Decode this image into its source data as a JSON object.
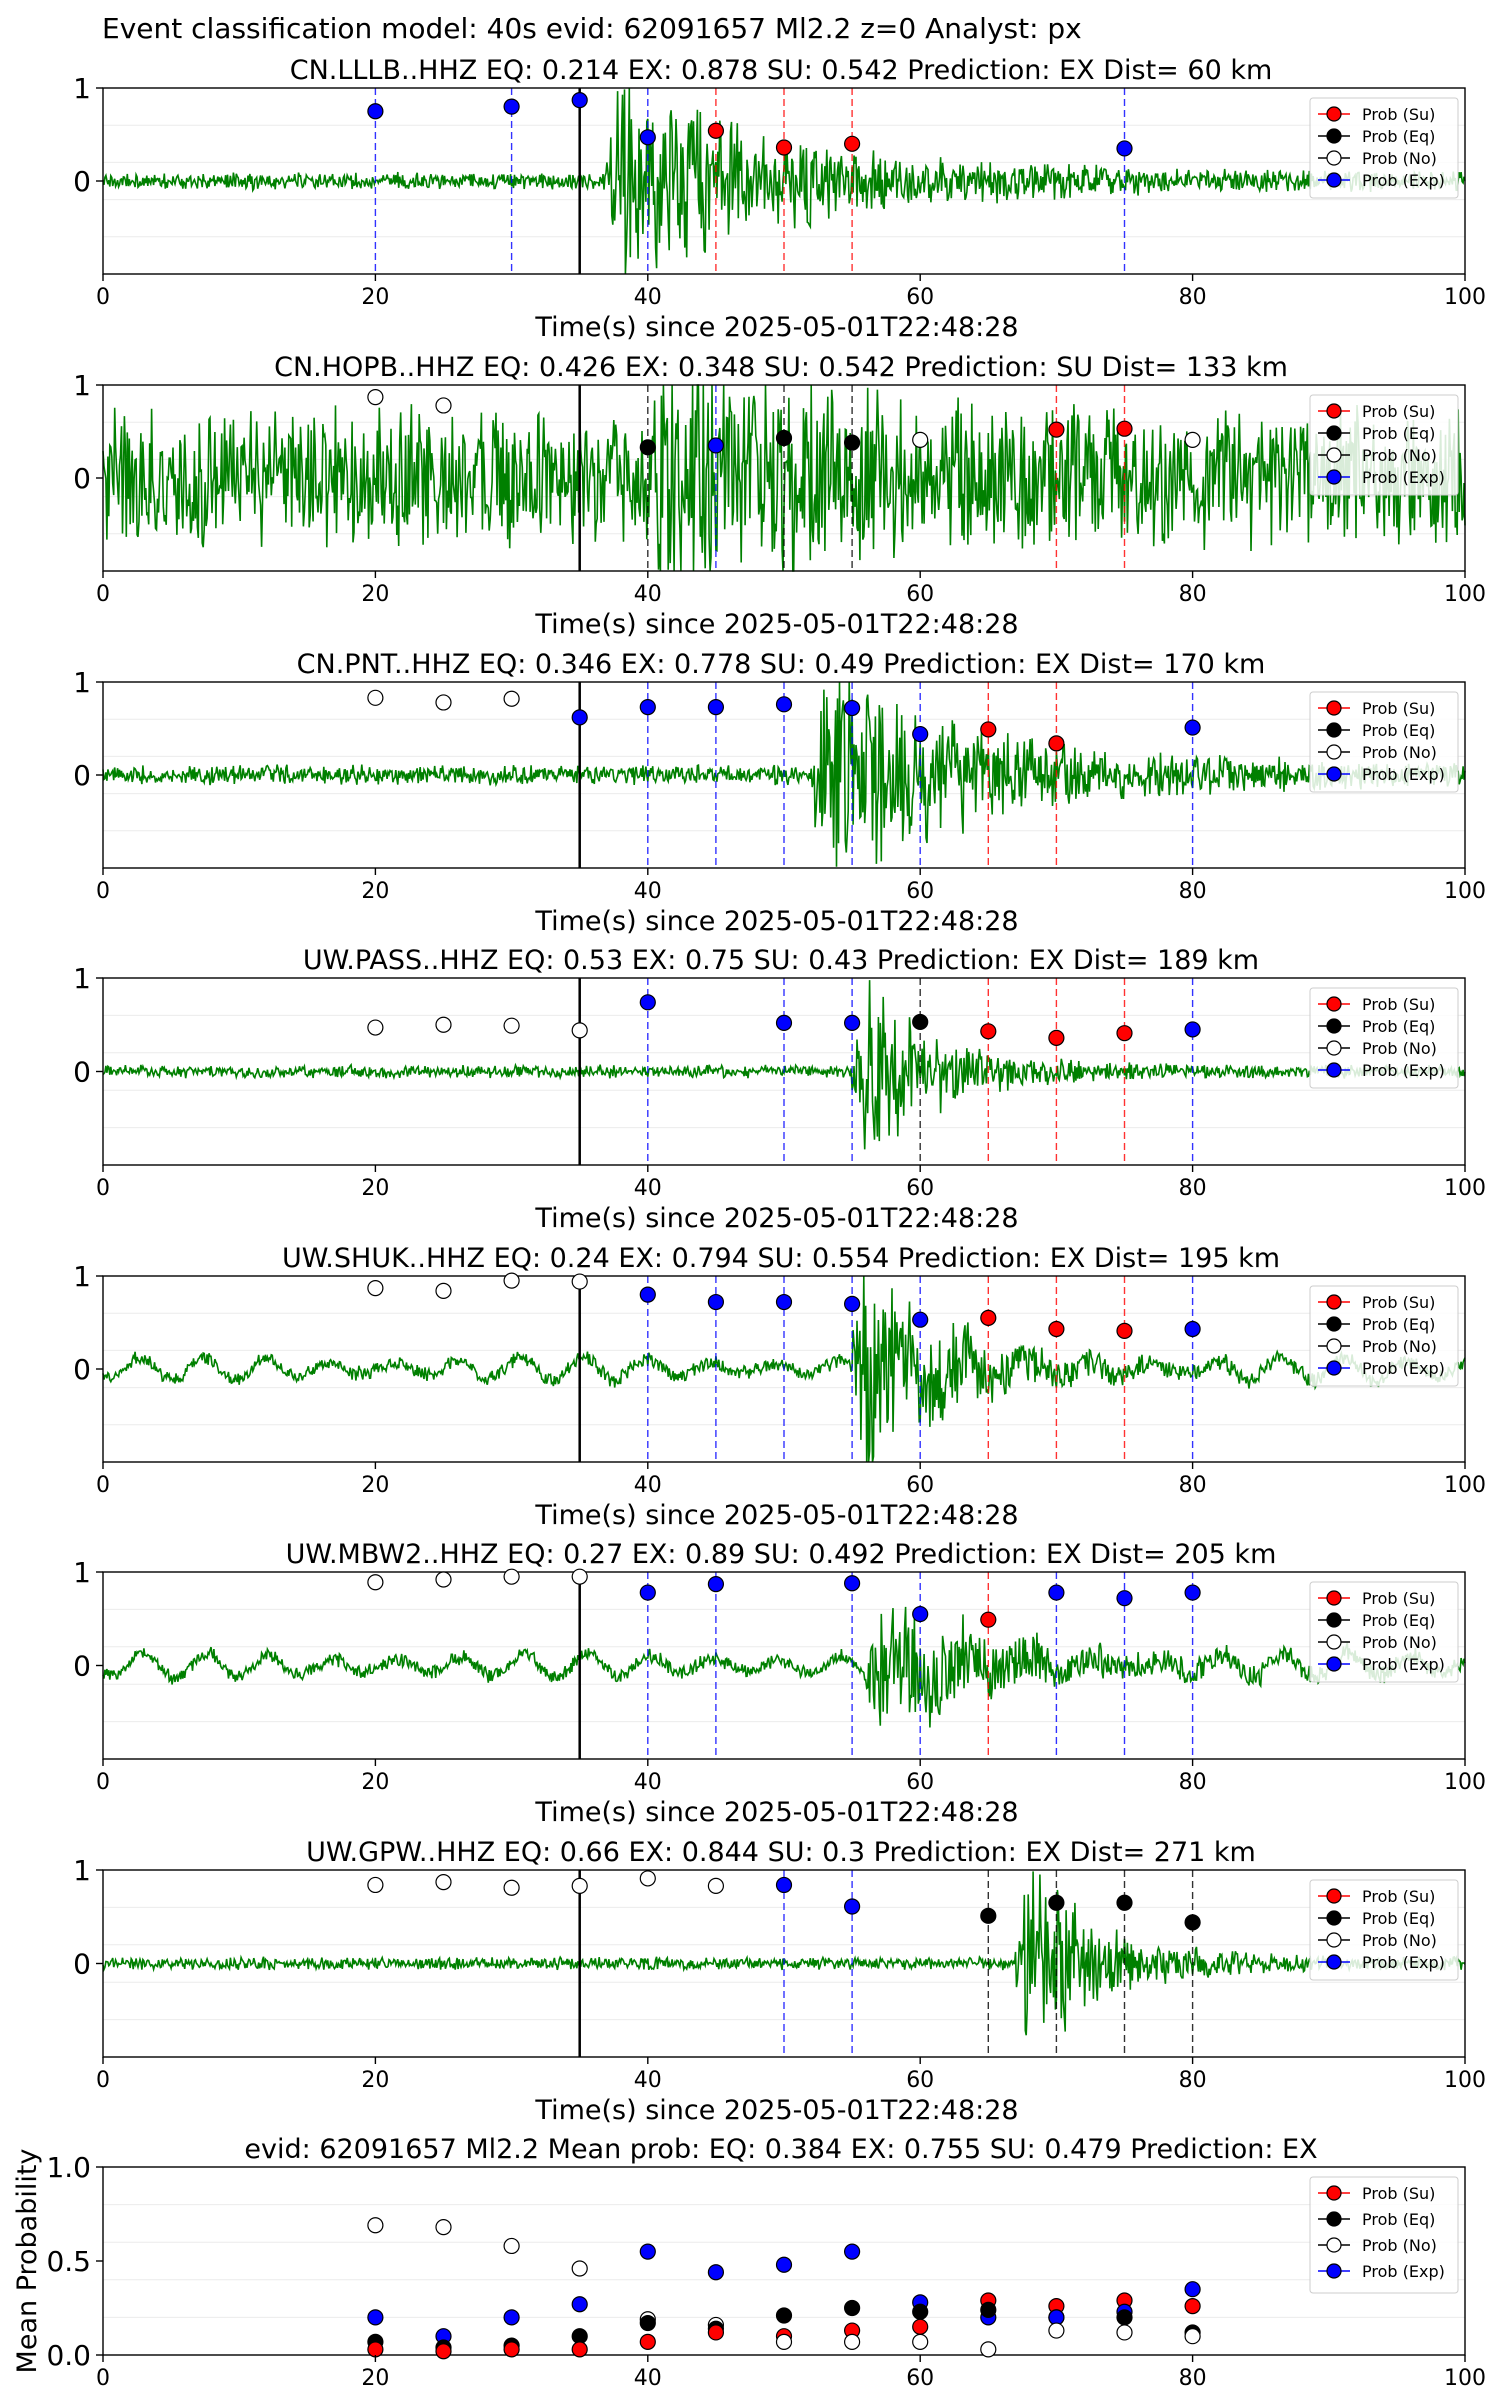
{
  "figure_title": "Event classification model: 40s evid: 62091657 Ml2.2 z=0 Analyst: px",
  "legend": [
    {
      "label": "Prob (Su)",
      "color": "#ff0000",
      "fill": true
    },
    {
      "label": "Prob (Eq)",
      "color": "#000000",
      "fill": true
    },
    {
      "label": "Prob (No)",
      "color": "#ffffff",
      "fill": false
    },
    {
      "label": "Prob (Exp)",
      "color": "#0000ff",
      "fill": true
    }
  ],
  "colors": {
    "waveform": "#008000",
    "su": "#ff0000",
    "eq": "#000000",
    "no": "#ffffff",
    "exp": "#0000ff",
    "pick": "#000000"
  },
  "chart_data": [
    {
      "type": "scatter",
      "title": "CN.LLLB..HHZ   EQ: 0.214  EX: 0.878  SU: 0.542   Prediction: EX    Dist= 60 km",
      "xlabel": "Time(s) since 2025-05-01T22:48:28",
      "xlim": [
        0,
        100
      ],
      "ylim": [
        -1,
        1
      ],
      "yticks": [
        "1",
        "0"
      ],
      "xticks": [
        "0",
        "20",
        "40",
        "60",
        "80",
        "100"
      ],
      "pick": 35,
      "amp": 0.8,
      "quiet": 0.07,
      "onset": 37,
      "decay": 30,
      "seed": 3,
      "lf": 0.0,
      "points": [
        {
          "x": 20,
          "y": 0.75,
          "class": "exp"
        },
        {
          "x": 30,
          "y": 0.8,
          "class": "exp"
        },
        {
          "x": 35,
          "y": 0.87,
          "class": "exp"
        },
        {
          "x": 40,
          "y": 0.47,
          "class": "exp"
        },
        {
          "x": 45,
          "y": 0.54,
          "class": "su"
        },
        {
          "x": 50,
          "y": 0.36,
          "class": "su"
        },
        {
          "x": 55,
          "y": 0.4,
          "class": "su"
        },
        {
          "x": 75,
          "y": 0.35,
          "class": "exp"
        }
      ]
    },
    {
      "type": "scatter",
      "title": "CN.HOPB..HHZ   EQ: 0.426  EX: 0.348  SU: 0.542   Prediction: SU    Dist= 133 km",
      "xlabel": "Time(s) since 2025-05-01T22:48:28",
      "xlim": [
        0,
        100
      ],
      "ylim": [
        -1,
        1
      ],
      "yticks": [
        "1",
        "0"
      ],
      "xticks": [
        "0",
        "20",
        "40",
        "60",
        "80",
        "100"
      ],
      "pick": 35,
      "amp": 0.7,
      "quiet": 0.55,
      "onset": 40,
      "decay": 25,
      "seed": 7,
      "lf": 0.0,
      "points": [
        {
          "x": 20,
          "y": 0.87,
          "class": "no"
        },
        {
          "x": 25,
          "y": 0.78,
          "class": "no"
        },
        {
          "x": 40,
          "y": 0.33,
          "class": "eq"
        },
        {
          "x": 45,
          "y": 0.35,
          "class": "exp"
        },
        {
          "x": 50,
          "y": 0.43,
          "class": "eq"
        },
        {
          "x": 55,
          "y": 0.38,
          "class": "eq"
        },
        {
          "x": 60,
          "y": 0.41,
          "class": "no"
        },
        {
          "x": 70,
          "y": 0.52,
          "class": "su"
        },
        {
          "x": 75,
          "y": 0.53,
          "class": "su"
        },
        {
          "x": 80,
          "y": 0.41,
          "class": "no"
        }
      ]
    },
    {
      "type": "scatter",
      "title": "CN.PNT..HHZ   EQ: 0.346  EX: 0.778  SU: 0.49   Prediction: EX    Dist= 170 km",
      "xlabel": "Time(s) since 2025-05-01T22:48:28",
      "xlim": [
        0,
        100
      ],
      "ylim": [
        -1,
        1
      ],
      "yticks": [
        "1",
        "0"
      ],
      "xticks": [
        "0",
        "20",
        "40",
        "60",
        "80",
        "100"
      ],
      "pick": 35,
      "amp": 0.85,
      "quiet": 0.08,
      "onset": 52,
      "decay": 28,
      "seed": 11,
      "lf": 0.0,
      "points": [
        {
          "x": 20,
          "y": 0.83,
          "class": "no"
        },
        {
          "x": 25,
          "y": 0.78,
          "class": "no"
        },
        {
          "x": 30,
          "y": 0.82,
          "class": "no"
        },
        {
          "x": 35,
          "y": 0.62,
          "class": "exp"
        },
        {
          "x": 40,
          "y": 0.73,
          "class": "exp"
        },
        {
          "x": 45,
          "y": 0.73,
          "class": "exp"
        },
        {
          "x": 50,
          "y": 0.76,
          "class": "exp"
        },
        {
          "x": 55,
          "y": 0.72,
          "class": "exp"
        },
        {
          "x": 60,
          "y": 0.44,
          "class": "exp"
        },
        {
          "x": 65,
          "y": 0.49,
          "class": "su"
        },
        {
          "x": 70,
          "y": 0.34,
          "class": "su"
        },
        {
          "x": 80,
          "y": 0.51,
          "class": "exp"
        }
      ]
    },
    {
      "type": "scatter",
      "title": "UW.PASS..HHZ   EQ: 0.53  EX: 0.75  SU: 0.43   Prediction: EX    Dist= 189 km",
      "xlabel": "Time(s) since 2025-05-01T22:48:28",
      "xlim": [
        0,
        100
      ],
      "ylim": [
        -1,
        1
      ],
      "yticks": [
        "1",
        "0"
      ],
      "xticks": [
        "0",
        "20",
        "40",
        "60",
        "80",
        "100"
      ],
      "pick": 35,
      "amp": 0.85,
      "quiet": 0.05,
      "onset": 55,
      "decay": 12,
      "seed": 17,
      "lf": 0.0,
      "points": [
        {
          "x": 20,
          "y": 0.47,
          "class": "no"
        },
        {
          "x": 25,
          "y": 0.5,
          "class": "no"
        },
        {
          "x": 30,
          "y": 0.49,
          "class": "no"
        },
        {
          "x": 35,
          "y": 0.44,
          "class": "no"
        },
        {
          "x": 40,
          "y": 0.74,
          "class": "exp"
        },
        {
          "x": 50,
          "y": 0.52,
          "class": "exp"
        },
        {
          "x": 55,
          "y": 0.52,
          "class": "exp"
        },
        {
          "x": 60,
          "y": 0.53,
          "class": "eq"
        },
        {
          "x": 65,
          "y": 0.43,
          "class": "su"
        },
        {
          "x": 70,
          "y": 0.36,
          "class": "su"
        },
        {
          "x": 75,
          "y": 0.41,
          "class": "su"
        },
        {
          "x": 80,
          "y": 0.45,
          "class": "exp"
        }
      ]
    },
    {
      "type": "scatter",
      "title": "UW.SHUK..HHZ   EQ: 0.24  EX: 0.794  SU: 0.554   Prediction: EX    Dist= 195 km",
      "xlabel": "Time(s) since 2025-05-01T22:48:28",
      "xlim": [
        0,
        100
      ],
      "ylim": [
        -1,
        1
      ],
      "yticks": [
        "1",
        "0"
      ],
      "xticks": [
        "0",
        "20",
        "40",
        "60",
        "80",
        "100"
      ],
      "pick": 35,
      "amp": 0.9,
      "quiet": 0.06,
      "onset": 55,
      "decay": 15,
      "seed": 23,
      "lf": 0.13,
      "points": [
        {
          "x": 20,
          "y": 0.87,
          "class": "no"
        },
        {
          "x": 25,
          "y": 0.84,
          "class": "no"
        },
        {
          "x": 30,
          "y": 0.95,
          "class": "no"
        },
        {
          "x": 35,
          "y": 0.94,
          "class": "no"
        },
        {
          "x": 40,
          "y": 0.8,
          "class": "exp"
        },
        {
          "x": 45,
          "y": 0.72,
          "class": "exp"
        },
        {
          "x": 50,
          "y": 0.72,
          "class": "exp"
        },
        {
          "x": 55,
          "y": 0.7,
          "class": "exp"
        },
        {
          "x": 60,
          "y": 0.53,
          "class": "exp"
        },
        {
          "x": 65,
          "y": 0.55,
          "class": "su"
        },
        {
          "x": 70,
          "y": 0.43,
          "class": "su"
        },
        {
          "x": 75,
          "y": 0.41,
          "class": "su"
        },
        {
          "x": 80,
          "y": 0.43,
          "class": "exp"
        }
      ]
    },
    {
      "type": "scatter",
      "title": "UW.MBW2..HHZ   EQ: 0.27  EX: 0.89  SU: 0.492   Prediction: EX    Dist= 205 km",
      "xlabel": "Time(s) since 2025-05-01T22:48:28",
      "xlim": [
        0,
        100
      ],
      "ylim": [
        -1,
        1
      ],
      "yticks": [
        "1",
        "0"
      ],
      "xticks": [
        "0",
        "20",
        "40",
        "60",
        "80",
        "100"
      ],
      "pick": 35,
      "amp": 0.55,
      "quiet": 0.06,
      "onset": 56,
      "decay": 22,
      "seed": 29,
      "lf": 0.14,
      "points": [
        {
          "x": 20,
          "y": 0.89,
          "class": "no"
        },
        {
          "x": 25,
          "y": 0.92,
          "class": "no"
        },
        {
          "x": 30,
          "y": 0.95,
          "class": "no"
        },
        {
          "x": 35,
          "y": 0.95,
          "class": "no"
        },
        {
          "x": 40,
          "y": 0.78,
          "class": "exp"
        },
        {
          "x": 45,
          "y": 0.87,
          "class": "exp"
        },
        {
          "x": 55,
          "y": 0.88,
          "class": "exp"
        },
        {
          "x": 60,
          "y": 0.55,
          "class": "exp"
        },
        {
          "x": 65,
          "y": 0.49,
          "class": "su"
        },
        {
          "x": 70,
          "y": 0.78,
          "class": "exp"
        },
        {
          "x": 75,
          "y": 0.72,
          "class": "exp"
        },
        {
          "x": 80,
          "y": 0.78,
          "class": "exp"
        }
      ]
    },
    {
      "type": "scatter",
      "title": "UW.GPW..HHZ   EQ: 0.66  EX: 0.844  SU: 0.3   Prediction: EX    Dist= 271 km",
      "xlabel": "Time(s) since 2025-05-01T22:48:28",
      "xlim": [
        0,
        100
      ],
      "ylim": [
        -1,
        1
      ],
      "yticks": [
        "1",
        "0"
      ],
      "xticks": [
        "0",
        "20",
        "40",
        "60",
        "80",
        "100"
      ],
      "pick": 35,
      "amp": 0.9,
      "quiet": 0.05,
      "onset": 67,
      "decay": 12,
      "seed": 31,
      "lf": 0.0,
      "points": [
        {
          "x": 20,
          "y": 0.84,
          "class": "no"
        },
        {
          "x": 25,
          "y": 0.87,
          "class": "no"
        },
        {
          "x": 30,
          "y": 0.81,
          "class": "no"
        },
        {
          "x": 35,
          "y": 0.83,
          "class": "no"
        },
        {
          "x": 40,
          "y": 0.91,
          "class": "no"
        },
        {
          "x": 45,
          "y": 0.83,
          "class": "no"
        },
        {
          "x": 50,
          "y": 0.84,
          "class": "exp"
        },
        {
          "x": 55,
          "y": 0.61,
          "class": "exp"
        },
        {
          "x": 65,
          "y": 0.51,
          "class": "eq"
        },
        {
          "x": 70,
          "y": 0.65,
          "class": "eq"
        },
        {
          "x": 75,
          "y": 0.65,
          "class": "eq"
        },
        {
          "x": 80,
          "y": 0.44,
          "class": "eq"
        }
      ]
    },
    {
      "type": "scatter",
      "title": "evid: 62091657  Ml2.2   Mean prob:   EQ: 0.384  EX: 0.755  SU: 0.479   Prediction: EX",
      "xlabel": "",
      "ylabel": "Mean Probability",
      "xlim": [
        0,
        100
      ],
      "ylim": [
        0,
        1
      ],
      "yticks": [
        "0.0",
        "0.5",
        "1.0"
      ],
      "xticks": [
        "0",
        "20",
        "40",
        "60",
        "80",
        "100"
      ],
      "points": [
        {
          "x": 20,
          "y": 0.69,
          "class": "no"
        },
        {
          "x": 20,
          "y": 0.2,
          "class": "exp"
        },
        {
          "x": 20,
          "y": 0.07,
          "class": "eq"
        },
        {
          "x": 20,
          "y": 0.03,
          "class": "su"
        },
        {
          "x": 25,
          "y": 0.68,
          "class": "no"
        },
        {
          "x": 25,
          "y": 0.1,
          "class": "exp"
        },
        {
          "x": 25,
          "y": 0.04,
          "class": "eq"
        },
        {
          "x": 25,
          "y": 0.02,
          "class": "su"
        },
        {
          "x": 30,
          "y": 0.58,
          "class": "no"
        },
        {
          "x": 30,
          "y": 0.2,
          "class": "exp"
        },
        {
          "x": 30,
          "y": 0.05,
          "class": "eq"
        },
        {
          "x": 30,
          "y": 0.03,
          "class": "su"
        },
        {
          "x": 35,
          "y": 0.46,
          "class": "no"
        },
        {
          "x": 35,
          "y": 0.27,
          "class": "exp"
        },
        {
          "x": 35,
          "y": 0.1,
          "class": "eq"
        },
        {
          "x": 35,
          "y": 0.03,
          "class": "su"
        },
        {
          "x": 40,
          "y": 0.55,
          "class": "exp"
        },
        {
          "x": 40,
          "y": 0.19,
          "class": "no"
        },
        {
          "x": 40,
          "y": 0.17,
          "class": "eq"
        },
        {
          "x": 40,
          "y": 0.07,
          "class": "su"
        },
        {
          "x": 45,
          "y": 0.44,
          "class": "exp"
        },
        {
          "x": 45,
          "y": 0.16,
          "class": "no"
        },
        {
          "x": 45,
          "y": 0.14,
          "class": "eq"
        },
        {
          "x": 45,
          "y": 0.12,
          "class": "su"
        },
        {
          "x": 50,
          "y": 0.48,
          "class": "exp"
        },
        {
          "x": 50,
          "y": 0.21,
          "class": "eq"
        },
        {
          "x": 50,
          "y": 0.1,
          "class": "su"
        },
        {
          "x": 50,
          "y": 0.07,
          "class": "no"
        },
        {
          "x": 55,
          "y": 0.55,
          "class": "exp"
        },
        {
          "x": 55,
          "y": 0.25,
          "class": "eq"
        },
        {
          "x": 55,
          "y": 0.13,
          "class": "su"
        },
        {
          "x": 55,
          "y": 0.07,
          "class": "no"
        },
        {
          "x": 60,
          "y": 0.28,
          "class": "exp"
        },
        {
          "x": 60,
          "y": 0.23,
          "class": "eq"
        },
        {
          "x": 60,
          "y": 0.15,
          "class": "su"
        },
        {
          "x": 60,
          "y": 0.07,
          "class": "no"
        },
        {
          "x": 65,
          "y": 0.29,
          "class": "su"
        },
        {
          "x": 65,
          "y": 0.2,
          "class": "exp"
        },
        {
          "x": 65,
          "y": 0.24,
          "class": "eq"
        },
        {
          "x": 65,
          "y": 0.03,
          "class": "no"
        },
        {
          "x": 70,
          "y": 0.26,
          "class": "su"
        },
        {
          "x": 70,
          "y": 0.2,
          "class": "eq"
        },
        {
          "x": 70,
          "y": 0.2,
          "class": "exp"
        },
        {
          "x": 70,
          "y": 0.13,
          "class": "no"
        },
        {
          "x": 75,
          "y": 0.29,
          "class": "su"
        },
        {
          "x": 75,
          "y": 0.23,
          "class": "exp"
        },
        {
          "x": 75,
          "y": 0.2,
          "class": "eq"
        },
        {
          "x": 75,
          "y": 0.12,
          "class": "no"
        },
        {
          "x": 80,
          "y": 0.35,
          "class": "exp"
        },
        {
          "x": 80,
          "y": 0.26,
          "class": "su"
        },
        {
          "x": 80,
          "y": 0.12,
          "class": "eq"
        },
        {
          "x": 80,
          "y": 0.1,
          "class": "no"
        }
      ]
    }
  ]
}
